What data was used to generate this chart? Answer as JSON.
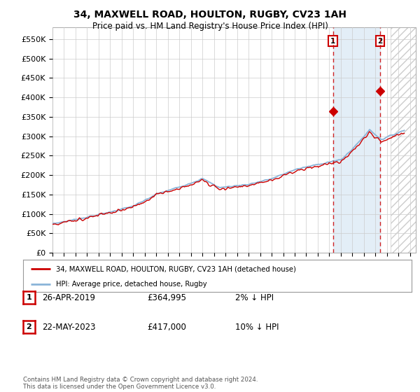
{
  "title": "34, MAXWELL ROAD, HOULTON, RUGBY, CV23 1AH",
  "subtitle": "Price paid vs. HM Land Registry's House Price Index (HPI)",
  "ylabel_ticks": [
    "£0",
    "£50K",
    "£100K",
    "£150K",
    "£200K",
    "£250K",
    "£300K",
    "£350K",
    "£400K",
    "£450K",
    "£500K",
    "£550K"
  ],
  "ytick_values": [
    0,
    50000,
    100000,
    150000,
    200000,
    250000,
    300000,
    350000,
    400000,
    450000,
    500000,
    550000
  ],
  "ylim": [
    0,
    580000
  ],
  "xlim_start": 1995,
  "xlim_end": 2026.5,
  "hpi_color": "#8ab4d8",
  "price_color": "#cc0000",
  "shade_color": "#d8e8f5",
  "marker1_x": 2019.32,
  "marker2_x": 2023.4,
  "marker1_y": 364995,
  "marker2_y": 417000,
  "future_start": 2024.3,
  "legend_label1": "34, MAXWELL ROAD, HOULTON, RUGBY, CV23 1AH (detached house)",
  "legend_label2": "HPI: Average price, detached house, Rugby",
  "annotation1_num": "1",
  "annotation2_num": "2",
  "table_row1": [
    "1",
    "26-APR-2019",
    "£364,995",
    "2% ↓ HPI"
  ],
  "table_row2": [
    "2",
    "22-MAY-2023",
    "£417,000",
    "10% ↓ HPI"
  ],
  "footer": "Contains HM Land Registry data © Crown copyright and database right 2024.\nThis data is licensed under the Open Government Licence v3.0.",
  "plot_bg": "#ffffff",
  "grid_color": "#cccccc"
}
